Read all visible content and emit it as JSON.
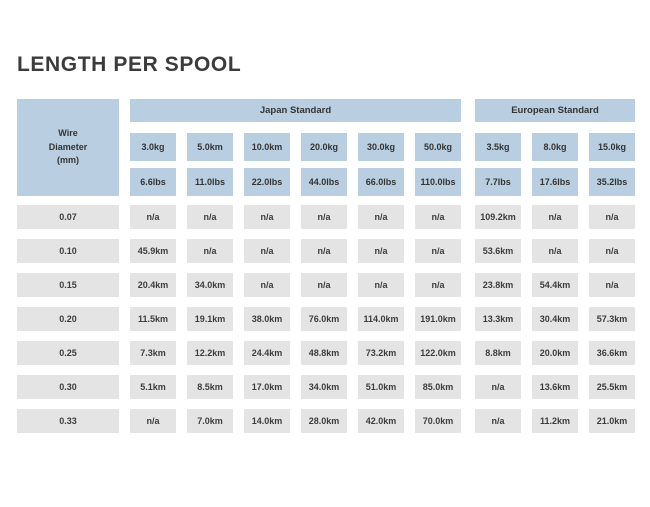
{
  "title": "LENGTH PER SPOOL",
  "colors": {
    "header_blue": "#b9cfe1",
    "cell_gray": "#e4e4e4",
    "text_dark": "#3a3a3a",
    "background": "#ffffff"
  },
  "chart_data": {
    "type": "table",
    "title": "LENGTH PER SPOOL",
    "row_header_lines": [
      "Wire",
      "Diameter",
      "(mm)"
    ],
    "column_groups": [
      {
        "label": "Japan Standard",
        "kg_labels": [
          "3.0kg",
          "5.0km",
          "10.0km",
          "20.0kg",
          "30.0kg",
          "50.0kg"
        ],
        "lbs_labels": [
          "6.6lbs",
          "11.0lbs",
          "22.0lbs",
          "44.0lbs",
          "66.0lbs",
          "110.0lbs"
        ]
      },
      {
        "label": "European Standard",
        "kg_labels": [
          "3.5kg",
          "8.0kg",
          "15.0kg"
        ],
        "lbs_labels": [
          "7.7lbs",
          "17.6lbs",
          "35.2lbs"
        ]
      }
    ],
    "rows": [
      {
        "diameter": "0.07",
        "japan": [
          "n/a",
          "n/a",
          "n/a",
          "n/a",
          "n/a",
          "n/a"
        ],
        "european": [
          "109.2km",
          "n/a",
          "n/a"
        ]
      },
      {
        "diameter": "0.10",
        "japan": [
          "45.9km",
          "n/a",
          "n/a",
          "n/a",
          "n/a",
          "n/a"
        ],
        "european": [
          "53.6km",
          "n/a",
          "n/a"
        ]
      },
      {
        "diameter": "0.15",
        "japan": [
          "20.4km",
          "34.0km",
          "n/a",
          "n/a",
          "n/a",
          "n/a"
        ],
        "european": [
          "23.8km",
          "54.4km",
          "n/a"
        ]
      },
      {
        "diameter": "0.20",
        "japan": [
          "11.5km",
          "19.1km",
          "38.0km",
          "76.0km",
          "114.0km",
          "191.0km"
        ],
        "european": [
          "13.3km",
          "30.4km",
          "57.3km"
        ]
      },
      {
        "diameter": "0.25",
        "japan": [
          "7.3km",
          "12.2km",
          "24.4km",
          "48.8km",
          "73.2km",
          "122.0km"
        ],
        "european": [
          "8.8km",
          "20.0km",
          "36.6km"
        ]
      },
      {
        "diameter": "0.30",
        "japan": [
          "5.1km",
          "8.5km",
          "17.0km",
          "34.0km",
          "51.0km",
          "85.0km"
        ],
        "european": [
          "n/a",
          "13.6km",
          "25.5km"
        ]
      },
      {
        "diameter": "0.33",
        "japan": [
          "n/a",
          "7.0km",
          "14.0km",
          "28.0km",
          "42.0km",
          "70.0km"
        ],
        "european": [
          "n/a",
          "11.2km",
          "21.0km"
        ]
      }
    ]
  }
}
